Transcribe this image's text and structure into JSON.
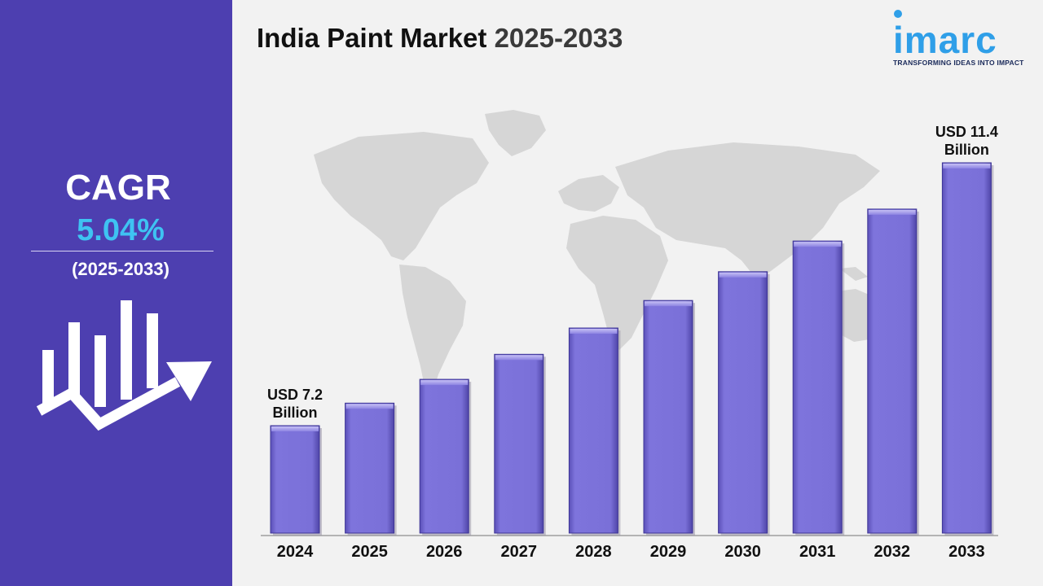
{
  "sidebar": {
    "cagr_label": "CAGR",
    "cagr_value": "5.04%",
    "period": "(2025-2033)",
    "accent_color": "#3ec3f2",
    "background_color": "#4d3fb0",
    "icon": "bar-chart-growth-arrow-icon"
  },
  "header": {
    "title_main": "India Paint Market ",
    "title_years": "2025-2033"
  },
  "logo": {
    "brand": "imarc",
    "tagline": "TRANSFORMING IDEAS INTO IMPACT",
    "color": "#2f9fe8"
  },
  "chart_data": {
    "type": "bar",
    "categories": [
      "2024",
      "2025",
      "2026",
      "2027",
      "2028",
      "2029",
      "2030",
      "2031",
      "2032",
      "2033"
    ],
    "values": [
      7.2,
      7.56,
      7.94,
      8.34,
      8.76,
      9.2,
      9.66,
      10.15,
      10.66,
      11.4
    ],
    "unit": "USD Billion",
    "annotations": [
      {
        "category": "2024",
        "lines": [
          "USD 7.2",
          "Billion"
        ]
      },
      {
        "category": "2033",
        "lines": [
          "USD 11.4",
          "Billion"
        ]
      }
    ],
    "bar_color": "#7c72d8",
    "background_image": "world-map",
    "grid": false,
    "legend": "none"
  }
}
